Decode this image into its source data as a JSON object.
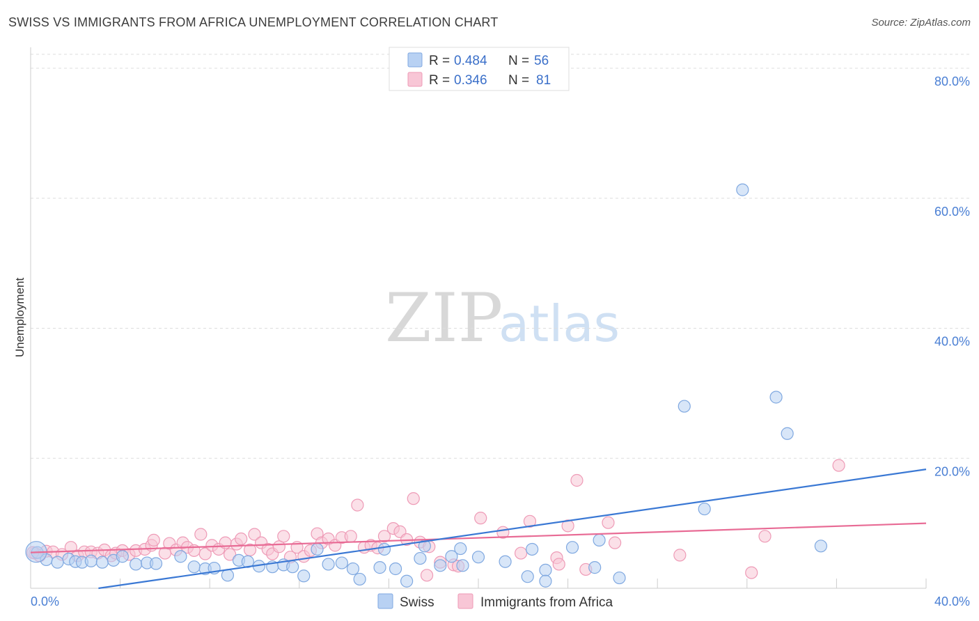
{
  "header": {
    "title": "SWISS VS IMMIGRANTS FROM AFRICA UNEMPLOYMENT CORRELATION CHART",
    "source": "Source: ZipAtlas.com"
  },
  "watermark": {
    "zip": "ZIP",
    "atlas": "atlas"
  },
  "colors": {
    "swiss_fill": "#b8d1f3",
    "swiss_stroke": "#7fa8e0",
    "swiss_line": "#3a78d4",
    "africa_fill": "#f8c6d6",
    "africa_stroke": "#ee9ab6",
    "africa_line": "#e86b95",
    "grid": "#dddddd",
    "tick_text": "#4a7fd4"
  },
  "legend": {
    "rows": [
      {
        "r_label": "R = ",
        "r_value": "0.484",
        "n_label": "N = ",
        "n_value": "56"
      },
      {
        "r_label": "R = ",
        "r_value": "0.346",
        "n_label": "N = ",
        "n_value": "81"
      }
    ]
  },
  "chart_data": {
    "type": "scatter",
    "title": "SWISS VS IMMIGRANTS FROM AFRICA UNEMPLOYMENT CORRELATION CHART",
    "xlabel": "",
    "ylabel": "Unemployment",
    "xlim": [
      0,
      40
    ],
    "ylim": [
      0,
      80
    ],
    "x_tick_labels": [
      "0.0%",
      "40.0%"
    ],
    "y_ticks": [
      20,
      40,
      60,
      80
    ],
    "y_tick_labels": [
      "20.0%",
      "40.0%",
      "60.0%",
      "80.0%"
    ],
    "grid": true,
    "series": [
      {
        "name": "Swiss",
        "R": 0.484,
        "N": 56,
        "trend": {
          "x0": 0,
          "y0": -1.5,
          "x1": 40,
          "y1": 18.3
        },
        "points": [
          [
            0.3,
            5.5
          ],
          [
            0.7,
            4.4
          ],
          [
            1.2,
            4.0
          ],
          [
            1.7,
            4.5
          ],
          [
            2.0,
            4.1
          ],
          [
            2.3,
            4.0
          ],
          [
            2.7,
            4.2
          ],
          [
            3.2,
            4.0
          ],
          [
            3.7,
            4.3
          ],
          [
            4.1,
            4.9
          ],
          [
            4.7,
            3.7
          ],
          [
            5.2,
            3.9
          ],
          [
            5.6,
            3.8
          ],
          [
            6.7,
            4.9
          ],
          [
            7.3,
            3.3
          ],
          [
            7.8,
            3.0
          ],
          [
            8.2,
            3.1
          ],
          [
            8.8,
            2.0
          ],
          [
            9.3,
            4.3
          ],
          [
            9.7,
            4.1
          ],
          [
            10.2,
            3.4
          ],
          [
            10.8,
            3.3
          ],
          [
            11.3,
            3.6
          ],
          [
            11.7,
            3.3
          ],
          [
            12.2,
            1.9
          ],
          [
            12.8,
            6.0
          ],
          [
            13.3,
            3.7
          ],
          [
            13.9,
            3.9
          ],
          [
            14.4,
            3.0
          ],
          [
            14.7,
            1.4
          ],
          [
            15.6,
            3.2
          ],
          [
            15.8,
            6.0
          ],
          [
            16.3,
            3.0
          ],
          [
            16.8,
            1.1
          ],
          [
            17.4,
            4.6
          ],
          [
            17.6,
            6.5
          ],
          [
            18.3,
            3.5
          ],
          [
            18.8,
            4.9
          ],
          [
            19.2,
            6.1
          ],
          [
            19.3,
            3.5
          ],
          [
            20.0,
            4.8
          ],
          [
            21.2,
            4.1
          ],
          [
            22.2,
            1.8
          ],
          [
            22.4,
            6.0
          ],
          [
            23.0,
            2.8
          ],
          [
            23.0,
            1.1
          ],
          [
            24.2,
            6.3
          ],
          [
            25.2,
            3.2
          ],
          [
            25.4,
            7.4
          ],
          [
            26.3,
            1.6
          ],
          [
            29.2,
            28.0
          ],
          [
            30.1,
            12.2
          ],
          [
            31.8,
            61.3
          ],
          [
            33.3,
            29.4
          ],
          [
            33.8,
            23.8
          ],
          [
            35.3,
            6.5
          ]
        ]
      },
      {
        "name": "Immigrants from Africa",
        "R": 0.346,
        "N": 81,
        "trend": {
          "x0": 0,
          "y0": 5.5,
          "x1": 40,
          "y1": 10.0
        },
        "points": [
          [
            0.2,
            5.4
          ],
          [
            0.4,
            5.0
          ],
          [
            0.7,
            5.7
          ],
          [
            1.0,
            5.6
          ],
          [
            1.4,
            5.2
          ],
          [
            1.8,
            6.3
          ],
          [
            2.1,
            5.0
          ],
          [
            2.4,
            5.6
          ],
          [
            2.7,
            5.6
          ],
          [
            3.0,
            5.4
          ],
          [
            3.3,
            5.9
          ],
          [
            3.6,
            5.0
          ],
          [
            3.8,
            5.4
          ],
          [
            4.1,
            5.8
          ],
          [
            4.4,
            5.2
          ],
          [
            4.7,
            5.8
          ],
          [
            5.1,
            6.0
          ],
          [
            5.4,
            6.6
          ],
          [
            5.5,
            7.4
          ],
          [
            6.0,
            5.4
          ],
          [
            6.2,
            6.9
          ],
          [
            6.5,
            5.9
          ],
          [
            6.8,
            7.0
          ],
          [
            7.0,
            6.3
          ],
          [
            7.3,
            5.8
          ],
          [
            7.6,
            8.3
          ],
          [
            7.8,
            5.3
          ],
          [
            8.1,
            6.6
          ],
          [
            8.4,
            6.0
          ],
          [
            8.7,
            7.0
          ],
          [
            8.9,
            5.2
          ],
          [
            9.2,
            6.8
          ],
          [
            9.4,
            7.6
          ],
          [
            9.8,
            5.9
          ],
          [
            10.0,
            8.3
          ],
          [
            10.3,
            7.0
          ],
          [
            10.6,
            6.0
          ],
          [
            10.8,
            5.3
          ],
          [
            11.1,
            6.4
          ],
          [
            11.3,
            8.0
          ],
          [
            11.6,
            4.8
          ],
          [
            11.9,
            6.3
          ],
          [
            12.2,
            4.9
          ],
          [
            12.5,
            5.8
          ],
          [
            12.8,
            8.4
          ],
          [
            13.0,
            7.0
          ],
          [
            13.3,
            7.6
          ],
          [
            13.6,
            6.6
          ],
          [
            13.9,
            7.8
          ],
          [
            14.3,
            8.0
          ],
          [
            14.6,
            12.8
          ],
          [
            14.9,
            6.3
          ],
          [
            15.2,
            6.6
          ],
          [
            15.5,
            6.2
          ],
          [
            15.8,
            8.0
          ],
          [
            16.2,
            9.2
          ],
          [
            16.5,
            8.7
          ],
          [
            16.8,
            7.5
          ],
          [
            17.1,
            13.8
          ],
          [
            17.4,
            7.1
          ],
          [
            17.7,
            2.0
          ],
          [
            17.8,
            6.4
          ],
          [
            18.3,
            4.0
          ],
          [
            18.9,
            3.6
          ],
          [
            19.1,
            3.4
          ],
          [
            20.1,
            10.8
          ],
          [
            21.1,
            8.6
          ],
          [
            21.9,
            5.4
          ],
          [
            22.3,
            10.3
          ],
          [
            23.5,
            4.7
          ],
          [
            23.6,
            3.7
          ],
          [
            24.0,
            9.6
          ],
          [
            24.4,
            16.6
          ],
          [
            24.8,
            2.9
          ],
          [
            25.8,
            10.1
          ],
          [
            26.1,
            7.0
          ],
          [
            29.0,
            5.1
          ],
          [
            32.2,
            2.4
          ],
          [
            32.8,
            8.0
          ],
          [
            36.1,
            18.9
          ],
          [
            0.1,
            5.5
          ]
        ]
      }
    ]
  },
  "bottom_legend": {
    "items": [
      {
        "label": "Swiss"
      },
      {
        "label": "Immigrants from Africa"
      }
    ]
  }
}
